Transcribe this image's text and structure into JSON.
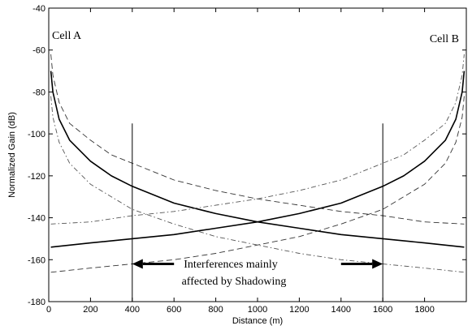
{
  "chart_data": {
    "type": "line",
    "xlabel": "Distance (m)",
    "ylabel": "Normalized Gain (dB)",
    "xlim": [
      0,
      2000
    ],
    "ylim": [
      -180,
      -40
    ],
    "x_ticks": [
      0,
      200,
      400,
      600,
      800,
      1000,
      1200,
      1400,
      1600,
      1800
    ],
    "y_ticks": [
      -40,
      -60,
      -80,
      -100,
      -120,
      -140,
      -160,
      -180
    ],
    "grid": false,
    "annotations": {
      "cell_a": "Cell A",
      "cell_b": "Cell B",
      "interference_line1": "Interferences mainly",
      "interference_line2": "affected by Shadowing"
    },
    "vertical_markers": [
      400,
      1600
    ],
    "arrows": [
      {
        "from": 600,
        "to": 400,
        "y": -162
      },
      {
        "from": 1400,
        "to": 1600,
        "y": -162
      }
    ],
    "series": [
      {
        "style": "solid",
        "x": [
          10,
          20,
          50,
          100,
          200,
          300,
          400,
          600,
          800,
          1000,
          1200,
          1400,
          1600,
          1800,
          1990
        ],
        "values": [
          -70,
          -80,
          -93,
          -103,
          -113,
          -120,
          -125,
          -133,
          -138,
          -142,
          -145,
          -148,
          -150,
          -152,
          -154
        ]
      },
      {
        "style": "solid",
        "x": [
          10,
          200,
          400,
          600,
          800,
          1000,
          1200,
          1400,
          1600,
          1700,
          1800,
          1900,
          1950,
          1980,
          1990
        ],
        "values": [
          -154,
          -152,
          -150,
          -148,
          -145,
          -142,
          -138,
          -133,
          -125,
          -120,
          -113,
          -103,
          -93,
          -80,
          -70
        ]
      },
      {
        "style": "dashed",
        "x": [
          10,
          20,
          50,
          100,
          200,
          300,
          400,
          600,
          800,
          1000,
          1200,
          1400,
          1600,
          1800,
          1990
        ],
        "values": [
          -62,
          -72,
          -85,
          -95,
          -103,
          -110,
          -114,
          -122,
          -127,
          -131,
          -134,
          -137,
          -139,
          -142,
          -143
        ]
      },
      {
        "style": "dashed",
        "x": [
          10,
          200,
          400,
          600,
          800,
          1000,
          1200,
          1400,
          1600,
          1700,
          1800,
          1900,
          1950,
          1980,
          1990
        ],
        "values": [
          -166,
          -164,
          -162,
          -160,
          -157,
          -153,
          -149,
          -143,
          -136,
          -130,
          -124,
          -114,
          -104,
          -92,
          -82
        ]
      },
      {
        "style": "dashdot",
        "x": [
          10,
          20,
          50,
          100,
          200,
          300,
          400,
          600,
          800,
          1000,
          1200,
          1400,
          1600,
          1800,
          1990
        ],
        "values": [
          -82,
          -92,
          -104,
          -114,
          -124,
          -130,
          -136,
          -143,
          -149,
          -153,
          -157,
          -160,
          -162,
          -164,
          -166
        ]
      },
      {
        "style": "dashdot",
        "x": [
          10,
          200,
          400,
          600,
          800,
          1000,
          1200,
          1400,
          1600,
          1700,
          1800,
          1900,
          1950,
          1980,
          1990
        ],
        "values": [
          -143,
          -142,
          -139,
          -137,
          -134,
          -131,
          -127,
          -122,
          -114,
          -110,
          -103,
          -95,
          -85,
          -72,
          -62
        ]
      }
    ]
  }
}
